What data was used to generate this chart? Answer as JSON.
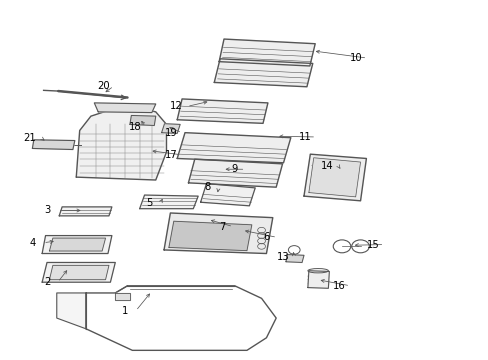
{
  "background_color": "#ffffff",
  "line_color": "#555555",
  "text_color": "#000000",
  "figsize": [
    4.89,
    3.6
  ],
  "dpi": 100,
  "label_config": [
    [
      1,
      0.255,
      0.135,
      0.31,
      0.19
    ],
    [
      2,
      0.095,
      0.215,
      0.14,
      0.255
    ],
    [
      3,
      0.095,
      0.415,
      0.17,
      0.415
    ],
    [
      4,
      0.065,
      0.325,
      0.115,
      0.33
    ],
    [
      5,
      0.305,
      0.435,
      0.335,
      0.455
    ],
    [
      6,
      0.545,
      0.34,
      0.495,
      0.36
    ],
    [
      7,
      0.455,
      0.37,
      0.425,
      0.39
    ],
    [
      8,
      0.425,
      0.48,
      0.445,
      0.465
    ],
    [
      9,
      0.48,
      0.53,
      0.455,
      0.53
    ],
    [
      10,
      0.73,
      0.84,
      0.64,
      0.86
    ],
    [
      11,
      0.625,
      0.62,
      0.565,
      0.622
    ],
    [
      12,
      0.36,
      0.705,
      0.43,
      0.72
    ],
    [
      13,
      0.58,
      0.285,
      0.6,
      0.3
    ],
    [
      14,
      0.67,
      0.54,
      0.7,
      0.525
    ],
    [
      15,
      0.765,
      0.32,
      0.72,
      0.318
    ],
    [
      16,
      0.695,
      0.205,
      0.65,
      0.222
    ],
    [
      17,
      0.35,
      0.57,
      0.305,
      0.582
    ],
    [
      18,
      0.275,
      0.648,
      0.285,
      0.672
    ],
    [
      19,
      0.35,
      0.632,
      0.34,
      0.65
    ],
    [
      20,
      0.21,
      0.762,
      0.21,
      0.74
    ],
    [
      21,
      0.06,
      0.618,
      0.095,
      0.605
    ]
  ]
}
